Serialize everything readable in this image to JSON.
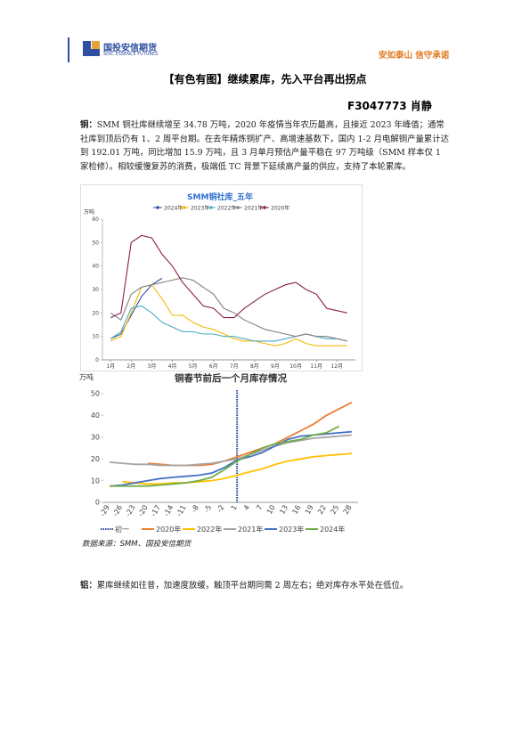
{
  "header": {
    "logo": "国投安信期货",
    "logo_en": "SDIC ESSENCE FUTURES",
    "slogan": "安如泰山 信守承诺"
  },
  "title": "【有色有图】继续累库，先入平台再出拐点",
  "author": "F3047773 肖静",
  "paragraphs": [
    {
      "lead": "铜：",
      "text": "SMM 铜社库继续增至 34.78 万吨，2020 年疫情当年农历最高，且接近 2023 年峰值；通常社库到顶后仍有 1、2 周平台期。在去年精炼铜扩产、高增速基数下，国内 1-2 月电解铜产量累计达到 192.01 万吨，同比增加 15.9 万吨，且 3 月单月预估产量平稳在 97 万吨级（SMM 样本仅 1 家检修）。相较缓慢复苏的消费，极端低 TC 背景下延续高产量的供应，支持了本轮累库。"
    },
    {
      "lead": "铝：",
      "text": "累库继续如往昔，加速度放缓，触顶平台期同需 2 周左右；绝对库存水平处在低位。"
    }
  ],
  "source": "数据来源：SMM、国投安信期货",
  "chart_data": [
    {
      "type": "line",
      "title": "SMM铜社库_五年",
      "y_unit": "万吨",
      "x": [
        1,
        1.5,
        2,
        2.5,
        3,
        3.5,
        4,
        4.5,
        5,
        5.5,
        6,
        6.5,
        7,
        7.5,
        8,
        8.5,
        9,
        9.5,
        10,
        10.5,
        11,
        11.5,
        12,
        12.5
      ],
      "xlim": [
        0.6,
        12.9
      ],
      "xticks": [
        {
          "value": 1,
          "label": "1月"
        },
        {
          "value": 2,
          "label": "2月"
        },
        {
          "value": 3,
          "label": "3月"
        },
        {
          "value": 4,
          "label": "4月"
        },
        {
          "value": 5,
          "label": "5月"
        },
        {
          "value": 6,
          "label": "6月"
        },
        {
          "value": 7,
          "label": "7月"
        },
        {
          "value": 8,
          "label": "8月"
        },
        {
          "value": 9,
          "label": "9月"
        },
        {
          "value": 10,
          "label": "10月"
        },
        {
          "value": 11,
          "label": "11月"
        },
        {
          "value": 12,
          "label": "12月"
        }
      ],
      "ylim": [
        0,
        60
      ],
      "yticks": [
        0,
        10,
        20,
        30,
        40,
        50,
        60
      ],
      "grid": false,
      "series": [
        {
          "name": "2024年",
          "color": "#2f4f9f",
          "values": [
            9,
            11,
            19,
            27,
            32,
            34.78,
            null,
            null,
            null,
            null,
            null,
            null,
            null,
            null,
            null,
            null,
            null,
            null,
            null,
            null,
            null,
            null,
            null,
            null
          ]
        },
        {
          "name": "2023年",
          "color": "#f5b800",
          "values": [
            8,
            10,
            20,
            31,
            32,
            26,
            19,
            19,
            16,
            14,
            13,
            11,
            9,
            8,
            8,
            7,
            6,
            7,
            9,
            7,
            6,
            6,
            6,
            6
          ]
        },
        {
          "name": "2022年",
          "color": "#4bacc6",
          "values": [
            9,
            12,
            22,
            23,
            20,
            16,
            14,
            12,
            12,
            11,
            11,
            10,
            10,
            9,
            8,
            8,
            8,
            9,
            10,
            11,
            10,
            9,
            9,
            8
          ]
        },
        {
          "name": "2021年",
          "color": "#7f7f7f",
          "values": [
            20,
            17,
            28,
            31,
            32,
            33,
            34,
            35,
            34,
            31,
            28,
            22,
            20,
            17,
            15,
            13,
            12,
            11,
            10,
            11,
            10,
            10,
            9,
            8
          ]
        },
        {
          "name": "2020年",
          "color": "#8b1c4a",
          "values": [
            18,
            20,
            50,
            53,
            52,
            45,
            40,
            33,
            28,
            23,
            22,
            18,
            18,
            22,
            25,
            28,
            30,
            32,
            33,
            30,
            28,
            22,
            21,
            20
          ]
        }
      ]
    },
    {
      "type": "line",
      "title": "铜春节前后一个月库存情况",
      "y_unit": "万吨",
      "categories": [
        "-29",
        "-26",
        "-23",
        "-20",
        "-17",
        "-14",
        "-11",
        "-8",
        "-5",
        "-2",
        "1",
        "4",
        "7",
        "10",
        "13",
        "16",
        "19",
        "22",
        "25",
        "28"
      ],
      "ylim": [
        0,
        50
      ],
      "yticks": [
        0,
        10,
        20,
        30,
        40,
        50
      ],
      "grid": false,
      "vline": {
        "category": "1",
        "label": "初一",
        "color": "#2f4f9f"
      },
      "series": [
        {
          "name": "2020年",
          "color": "#ed7d31",
          "values": [
            null,
            null,
            null,
            18,
            17.5,
            17,
            17,
            17,
            17.5,
            19,
            21,
            23,
            25,
            27,
            30,
            33,
            36,
            40,
            43,
            46
          ]
        },
        {
          "name": "2022年",
          "color": "#ffc000",
          "values": [
            null,
            9.5,
            9,
            8.5,
            8.5,
            9,
            9,
            9.5,
            10,
            11,
            12.5,
            14,
            15.5,
            17.5,
            19,
            20,
            21,
            21.5,
            22,
            22.5
          ]
        },
        {
          "name": "2021年",
          "color": "#a5a5a5",
          "values": [
            18.5,
            18,
            17.5,
            17.5,
            17,
            17,
            17,
            17.5,
            18,
            19,
            20,
            22,
            24,
            26,
            27.5,
            28.5,
            29.5,
            30,
            30.5,
            31
          ]
        },
        {
          "name": "2023年",
          "color": "#4472c4",
          "values": [
            7.5,
            8,
            9,
            10,
            11,
            11.5,
            12,
            12.5,
            13.5,
            16,
            19.5,
            21,
            23,
            26,
            29,
            30.5,
            31,
            31.5,
            32,
            32.5
          ]
        },
        {
          "name": "2024年",
          "color": "#70ad47",
          "values": [
            7.5,
            7.5,
            7.5,
            7.5,
            8,
            8.5,
            9,
            10,
            11.5,
            15,
            19,
            22,
            25,
            27,
            28,
            29,
            31,
            32,
            35,
            null
          ]
        }
      ]
    }
  ]
}
